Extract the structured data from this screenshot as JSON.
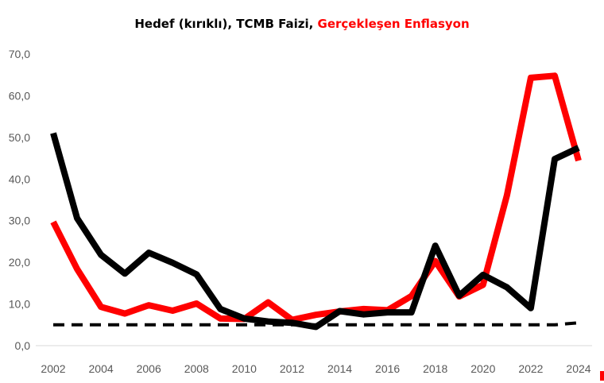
{
  "chart_data": {
    "type": "line",
    "title_parts": [
      {
        "text": "Hedef (kırıklı), TCMB Faizi, ",
        "color": "#000000"
      },
      {
        "text": "Gerçekleşen Enflasyon",
        "color": "#ff0000"
      }
    ],
    "xlabel": "",
    "ylabel": "",
    "ylim": [
      0,
      70
    ],
    "yticks": [
      "0,0",
      "10,0",
      "20,0",
      "30,0",
      "40,0",
      "50,0",
      "60,0",
      "70,0"
    ],
    "xticks": [
      "2002",
      "2004",
      "2006",
      "2008",
      "2010",
      "2012",
      "2014",
      "2016",
      "2018",
      "2020",
      "2022",
      "2024"
    ],
    "x": [
      2002,
      2003,
      2004,
      2005,
      2006,
      2007,
      2008,
      2009,
      2010,
      2011,
      2012,
      2013,
      2014,
      2015,
      2016,
      2017,
      2018,
      2019,
      2020,
      2021,
      2022,
      2023,
      2024
    ],
    "grid": false,
    "legend": "none",
    "series": [
      {
        "color": "#ff0000",
        "style": "solid",
        "values": [
          29.7,
          18.4,
          9.3,
          7.7,
          9.7,
          8.4,
          10.1,
          6.5,
          6.4,
          10.4,
          6.2,
          7.4,
          8.2,
          8.8,
          8.5,
          11.9,
          20.3,
          11.8,
          14.6,
          36.1,
          64.3,
          64.8,
          44.4
        ]
      },
      {
        "color": "#000000",
        "style": "solid",
        "values": [
          51.0,
          30.6,
          21.8,
          17.3,
          22.3,
          19.9,
          17.1,
          8.8,
          6.5,
          5.8,
          5.5,
          4.5,
          8.3,
          7.5,
          8.0,
          8.0,
          24.0,
          12.0,
          17.0,
          14.0,
          9.0,
          44.8,
          47.5
        ]
      },
      {
        "color": "#000000",
        "style": "dashed",
        "values": [
          5.0,
          5.0,
          5.0,
          5.0,
          5.0,
          5.0,
          5.0,
          5.0,
          5.0,
          5.0,
          5.0,
          5.0,
          5.0,
          5.0,
          5.0,
          5.0,
          5.0,
          5.0,
          5.0,
          5.0,
          5.0,
          5.0,
          5.5
        ]
      }
    ]
  }
}
